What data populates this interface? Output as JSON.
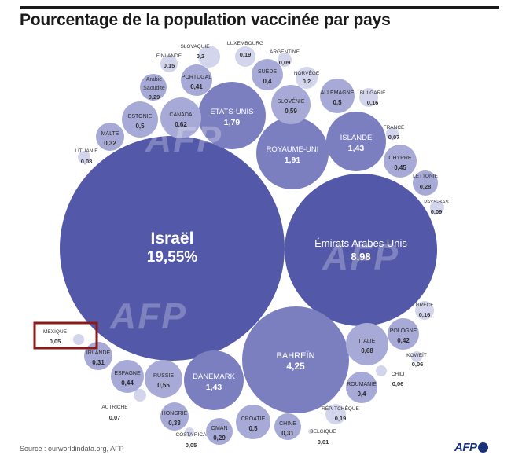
{
  "header": {
    "title": "Pourcentage de la population vaccinée par pays"
  },
  "footer": {
    "source": "Source : ourworldindata.org, AFP",
    "logo_text": "AFP"
  },
  "watermark": "AFP",
  "colors": {
    "large": "#5358a8",
    "medium": "#7b7fc0",
    "small": "#a7aad7",
    "tiny": "#d3d5ec",
    "highlight": "#8b1a1a"
  },
  "chart_data": {
    "type": "bubble",
    "title": "Pourcentage de la population vaccinée par pays",
    "unit": "%",
    "series": [
      {
        "label": "Israël",
        "value": "19,55%",
        "v": 19.55
      },
      {
        "label": "Émirats Arabes Unis",
        "value": "8,98",
        "v": 8.98
      },
      {
        "label": "Bahreïn",
        "value": "4,25",
        "v": 4.25
      },
      {
        "label": "Royaume-Uni",
        "value": "1,91",
        "v": 1.91
      },
      {
        "label": "États-Unis",
        "value": "1,79",
        "v": 1.79
      },
      {
        "label": "Islande",
        "value": "1,43",
        "v": 1.43
      },
      {
        "label": "Danemark",
        "value": "1,43",
        "v": 1.43
      },
      {
        "label": "Italie",
        "value": "0,68",
        "v": 0.68
      },
      {
        "label": "Canada",
        "value": "0,62",
        "v": 0.62
      },
      {
        "label": "Slovénie",
        "value": "0,59",
        "v": 0.59
      },
      {
        "label": "Russie",
        "value": "0,55",
        "v": 0.55
      },
      {
        "label": "Estonie",
        "value": "0,5",
        "v": 0.5
      },
      {
        "label": "Allemagne",
        "value": "0,5",
        "v": 0.5
      },
      {
        "label": "Croatie",
        "value": "0,5",
        "v": 0.5
      },
      {
        "label": "Chypre",
        "value": "0,45",
        "v": 0.45
      },
      {
        "label": "Espagne",
        "value": "0,44",
        "v": 0.44
      },
      {
        "label": "Pologne",
        "value": "0,42",
        "v": 0.42
      },
      {
        "label": "Portugal",
        "value": "0,41",
        "v": 0.41
      },
      {
        "label": "Suède",
        "value": "0,4",
        "v": 0.4
      },
      {
        "label": "Roumanie",
        "value": "0,4",
        "v": 0.4
      },
      {
        "label": "Hongrie",
        "value": "0,33",
        "v": 0.33
      },
      {
        "label": "Malte",
        "value": "0,32",
        "v": 0.32
      },
      {
        "label": "Irlande",
        "value": "0,31",
        "v": 0.31
      },
      {
        "label": "Chine",
        "value": "0,31",
        "v": 0.31
      },
      {
        "label": "Arabie Saoudite",
        "value": "0,29",
        "v": 0.29
      },
      {
        "label": "Oman",
        "value": "0,29",
        "v": 0.29
      },
      {
        "label": "Lettonie",
        "value": "0,28",
        "v": 0.28
      },
      {
        "label": "Slovaquie",
        "value": "0,2",
        "v": 0.2
      },
      {
        "label": "Norvège",
        "value": "0,2",
        "v": 0.2
      },
      {
        "label": "Luxembourg",
        "value": "0,19",
        "v": 0.19
      },
      {
        "label": "Rép. tchèque",
        "value": "0,19",
        "v": 0.19
      },
      {
        "label": "Bulgarie",
        "value": "0,16",
        "v": 0.16
      },
      {
        "label": "Grèce",
        "value": "0,16",
        "v": 0.16
      },
      {
        "label": "Finlande",
        "value": "0,15",
        "v": 0.15
      },
      {
        "label": "Argentine",
        "value": "0,09",
        "v": 0.09
      },
      {
        "label": "Pays-Bas",
        "value": "0,09",
        "v": 0.09
      },
      {
        "label": "Lituanie",
        "value": "0,08",
        "v": 0.08
      },
      {
        "label": "France",
        "value": "0,07",
        "v": 0.07
      },
      {
        "label": "Autriche",
        "value": "0,07",
        "v": 0.07
      },
      {
        "label": "Koweït",
        "value": "0,06",
        "v": 0.06
      },
      {
        "label": "Chili",
        "value": "0,06",
        "v": 0.06
      },
      {
        "label": "Mexique",
        "value": "0,05",
        "v": 0.05,
        "highlighted": true
      },
      {
        "label": "Costa Rica",
        "value": "0,05",
        "v": 0.05
      },
      {
        "label": "Belgique",
        "value": "0,01",
        "v": 0.01
      }
    ]
  }
}
